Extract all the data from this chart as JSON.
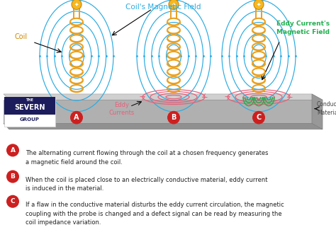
{
  "bg_color": "#ffffff",
  "coil_color": "#e8a020",
  "field_color_blue": "#29abe2",
  "field_color_pink": "#e8607a",
  "field_color_green": "#22b050",
  "label_color_red": "#cc2020",
  "label_color_coil": "#cc8800",
  "title_field": "Coil's Magnetic Field",
  "label_coil": "Coil",
  "label_eddy_currents": "Eddy\nCurrents",
  "label_eddy_mag": "Eddy Current's\nMagnetic Field",
  "label_cond_mat": "Conductive\nMaterial",
  "text_A": "The alternating current flowing through the coil at a chosen frequency generates\na magnetic field around the coil.",
  "text_B": "When the coil is placed close to an electrically conductive material, eddy current\nis induced in the material.",
  "text_C": "If a flaw in the conductive material disturbs the eddy current circulation, the magnetic\ncoupling with the probe is changed and a defect signal can be read by measuring the\ncoil impedance variation.",
  "circle_labels": [
    "A",
    "B",
    "C"
  ],
  "slab_color_top": "#d4d4d4",
  "slab_color_mid": "#b8b8b8",
  "slab_color_bot": "#a0a0a0"
}
